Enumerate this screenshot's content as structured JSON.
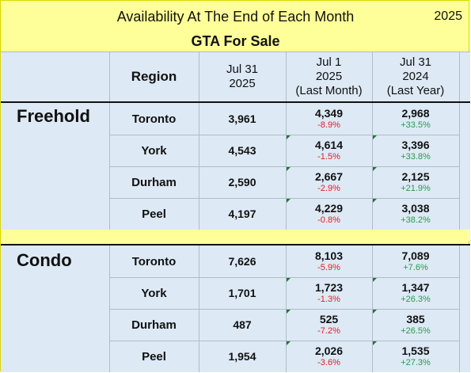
{
  "title": "Availability At The End of Each Month",
  "year": "2025",
  "subtitle": "GTA For Sale",
  "header": {
    "region": "Region",
    "col1": [
      "Jul 31",
      "2025"
    ],
    "col2": [
      "Jul 1",
      "2025",
      "(Last Month)"
    ],
    "col3": [
      "Jul 31",
      "2024",
      "(Last Year)"
    ]
  },
  "sections": [
    {
      "label": "Freehold",
      "rows": [
        {
          "region": "Toronto",
          "current": "3,961",
          "last_month": "4,349",
          "last_month_pct": "-8.9%",
          "last_year": "2,968",
          "last_year_pct": "+33.5%"
        },
        {
          "region": "York",
          "current": "4,543",
          "last_month": "4,614",
          "last_month_pct": "-1.5%",
          "last_year": "3,396",
          "last_year_pct": "+33.8%"
        },
        {
          "region": "Durham",
          "current": "2,590",
          "last_month": "2,667",
          "last_month_pct": "-2.9%",
          "last_year": "2,125",
          "last_year_pct": "+21.9%"
        },
        {
          "region": "Peel",
          "current": "4,197",
          "last_month": "4,229",
          "last_month_pct": "-0.8%",
          "last_year": "3,038",
          "last_year_pct": "+38.2%"
        }
      ]
    },
    {
      "label": "Condo",
      "rows": [
        {
          "region": "Toronto",
          "current": "7,626",
          "last_month": "8,103",
          "last_month_pct": "-5.9%",
          "last_year": "7,089",
          "last_year_pct": "+7.6%"
        },
        {
          "region": "York",
          "current": "1,701",
          "last_month": "1,723",
          "last_month_pct": "-1.3%",
          "last_year": "1,347",
          "last_year_pct": "+26.3%"
        },
        {
          "region": "Durham",
          "current": "487",
          "last_month": "525",
          "last_month_pct": "-7.2%",
          "last_year": "385",
          "last_year_pct": "+26.5%"
        },
        {
          "region": "Peel",
          "current": "1,954",
          "last_month": "2,026",
          "last_month_pct": "-3.6%",
          "last_year": "1,535",
          "last_year_pct": "+27.3%"
        }
      ]
    }
  ],
  "colors": {
    "background": "#ffff99",
    "table_fill": "#dde9f5",
    "negative": "#e02020",
    "positive": "#2a9a48",
    "comment_marker": "#1c7a2c"
  }
}
